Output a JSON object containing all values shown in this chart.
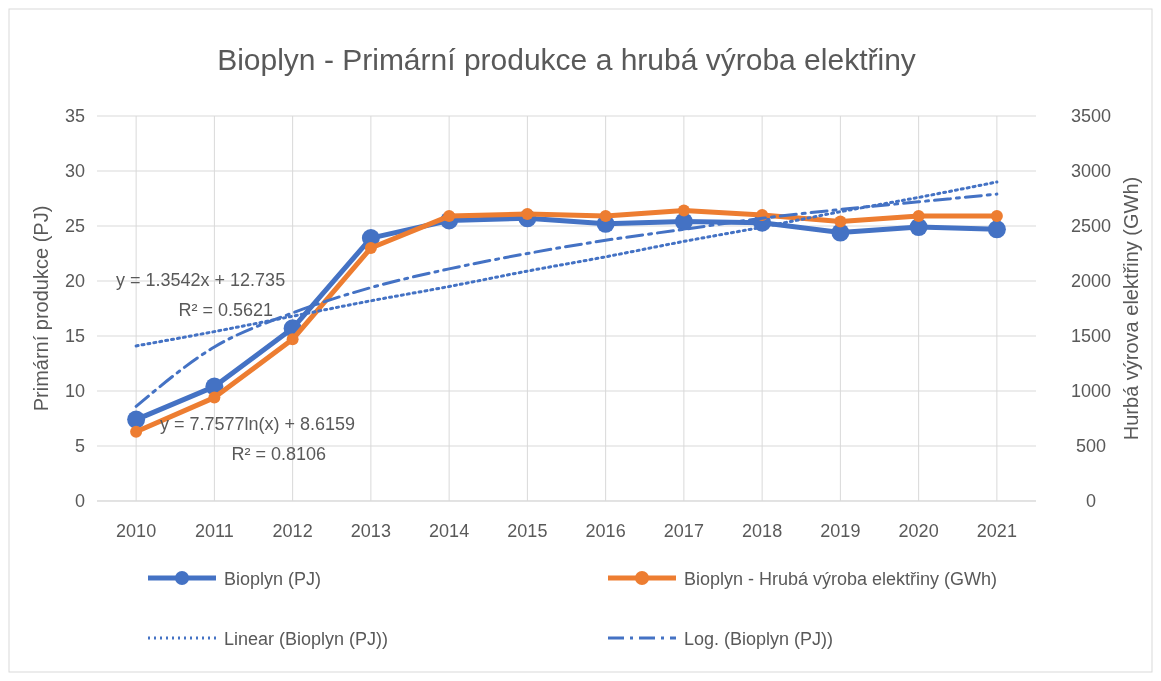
{
  "chart_data": {
    "type": "line",
    "title": "Bioplyn - Primární produkce a hrubá výroba elektřiny",
    "ylabel": "Primární produkce (PJ)",
    "y2label": "Hurbá výrova elektřiny (GWh)",
    "x": [
      2010,
      2011,
      2012,
      2013,
      2014,
      2015,
      2016,
      2017,
      2018,
      2019,
      2020,
      2021
    ],
    "xlim": [
      2009.5,
      2021.5
    ],
    "xticks": [
      2010,
      2011,
      2012,
      2013,
      2014,
      2015,
      2016,
      2017,
      2018,
      2019,
      2020,
      2021
    ],
    "ylim": [
      0,
      35
    ],
    "yticks": [
      0,
      5,
      10,
      15,
      20,
      25,
      30,
      35
    ],
    "y2lim": [
      0,
      3500
    ],
    "y2ticks": [
      0,
      500,
      1000,
      1500,
      2000,
      2500,
      3000,
      3500
    ],
    "grid": true,
    "legend": "bottom",
    "marker": "circle",
    "series": [
      {
        "name": "Bioplyn (PJ)",
        "color": "#4472c4",
        "values": [
          7.4,
          10.4,
          15.7,
          23.9,
          25.5,
          25.7,
          25.2,
          25.4,
          25.3,
          24.4,
          24.9,
          24.7
        ]
      },
      {
        "name": "Bioplyn - Hrubá výroba elektřiny (GWh)",
        "color": "#ed7d31",
        "axis": "y2",
        "values": [
          630,
          940,
          1470,
          2300,
          2590,
          2610,
          2590,
          2640,
          2600,
          2540,
          2590,
          2590
        ]
      },
      {
        "name": "Linear (Bioplyn (PJ))",
        "color": "#4472c4",
        "marker": "none",
        "line_style": "dotted",
        "values": [
          14.1,
          15.4,
          16.8,
          18.2,
          19.5,
          20.9,
          22.2,
          23.6,
          24.9,
          26.3,
          27.6,
          29.0
        ]
      },
      {
        "name": "Log. (Bioplyn (PJ))",
        "color": "#4472c4",
        "marker": "none",
        "line_style": "dashdot",
        "values": [
          8.6,
          14.0,
          17.1,
          19.4,
          21.1,
          22.5,
          23.7,
          24.7,
          25.7,
          26.5,
          27.2,
          27.9
        ]
      }
    ],
    "annotations": [
      "y = 1.3542x + 12.735",
      "R² = 0.5621",
      "y = 7.7577ln(x) + 8.6159",
      "R² = 0.8106"
    ]
  }
}
